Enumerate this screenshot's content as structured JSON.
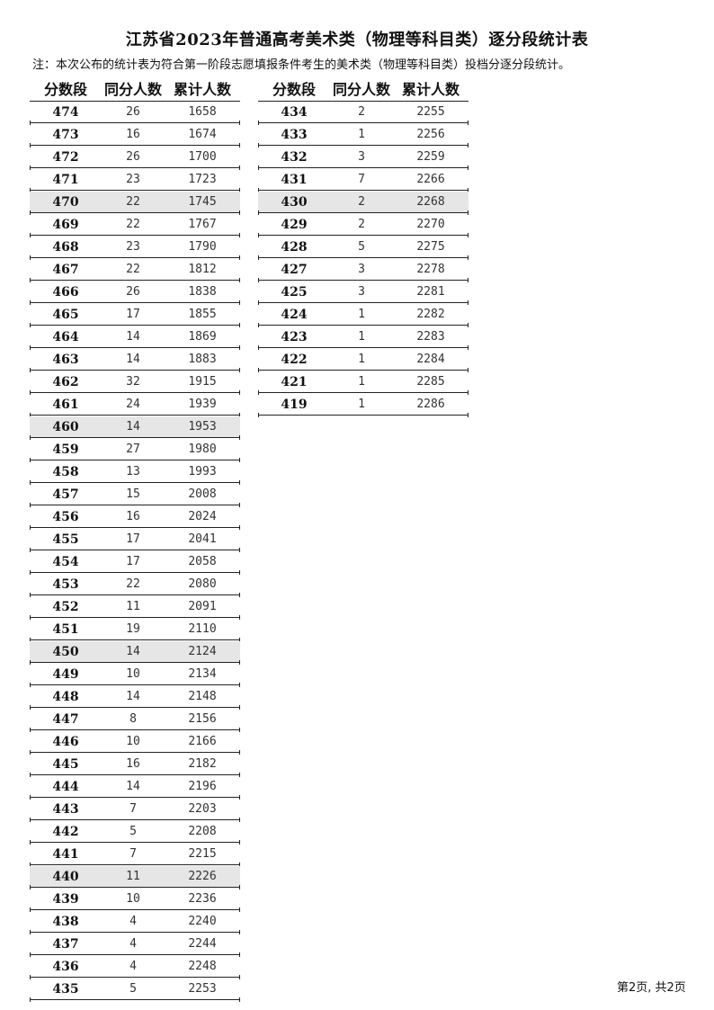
{
  "title": "江苏省2023年普通高考美术类（物理等科目类）逐分段统计表",
  "note": "注：本次公布的统计表为符合第一阶段志愿填报条件考生的美术类（物理等科目类）投档分逐分段统计。",
  "columns": [
    "分数段",
    "同分人数",
    "累计人数"
  ],
  "highlight_color": "#e6e6e6",
  "left_table": [
    [
      "474",
      "26",
      "1658"
    ],
    [
      "473",
      "16",
      "1674"
    ],
    [
      "472",
      "26",
      "1700"
    ],
    [
      "471",
      "23",
      "1723"
    ],
    [
      "470",
      "22",
      "1745"
    ],
    [
      "469",
      "22",
      "1767"
    ],
    [
      "468",
      "23",
      "1790"
    ],
    [
      "467",
      "22",
      "1812"
    ],
    [
      "466",
      "26",
      "1838"
    ],
    [
      "465",
      "17",
      "1855"
    ],
    [
      "464",
      "14",
      "1869"
    ],
    [
      "463",
      "14",
      "1883"
    ],
    [
      "462",
      "32",
      "1915"
    ],
    [
      "461",
      "24",
      "1939"
    ],
    [
      "460",
      "14",
      "1953"
    ],
    [
      "459",
      "27",
      "1980"
    ],
    [
      "458",
      "13",
      "1993"
    ],
    [
      "457",
      "15",
      "2008"
    ],
    [
      "456",
      "16",
      "2024"
    ],
    [
      "455",
      "17",
      "2041"
    ],
    [
      "454",
      "17",
      "2058"
    ],
    [
      "453",
      "22",
      "2080"
    ],
    [
      "452",
      "11",
      "2091"
    ],
    [
      "451",
      "19",
      "2110"
    ],
    [
      "450",
      "14",
      "2124"
    ],
    [
      "449",
      "10",
      "2134"
    ],
    [
      "448",
      "14",
      "2148"
    ],
    [
      "447",
      "8",
      "2156"
    ],
    [
      "446",
      "10",
      "2166"
    ],
    [
      "445",
      "16",
      "2182"
    ],
    [
      "444",
      "14",
      "2196"
    ],
    [
      "443",
      "7",
      "2203"
    ],
    [
      "442",
      "5",
      "2208"
    ],
    [
      "441",
      "7",
      "2215"
    ],
    [
      "440",
      "11",
      "2226"
    ],
    [
      "439",
      "10",
      "2236"
    ],
    [
      "438",
      "4",
      "2240"
    ],
    [
      "437",
      "4",
      "2244"
    ],
    [
      "436",
      "4",
      "2248"
    ],
    [
      "435",
      "5",
      "2253"
    ]
  ],
  "right_table": [
    [
      "434",
      "2",
      "2255"
    ],
    [
      "433",
      "1",
      "2256"
    ],
    [
      "432",
      "3",
      "2259"
    ],
    [
      "431",
      "7",
      "2266"
    ],
    [
      "430",
      "2",
      "2268"
    ],
    [
      "429",
      "2",
      "2270"
    ],
    [
      "428",
      "5",
      "2275"
    ],
    [
      "427",
      "3",
      "2278"
    ],
    [
      "425",
      "3",
      "2281"
    ],
    [
      "424",
      "1",
      "2282"
    ],
    [
      "423",
      "1",
      "2283"
    ],
    [
      "422",
      "1",
      "2284"
    ],
    [
      "421",
      "1",
      "2285"
    ],
    [
      "419",
      "1",
      "2286"
    ]
  ],
  "highlighted_scores": [
    "470",
    "460",
    "450",
    "440",
    "430"
  ],
  "footer": "第2页, 共2页"
}
